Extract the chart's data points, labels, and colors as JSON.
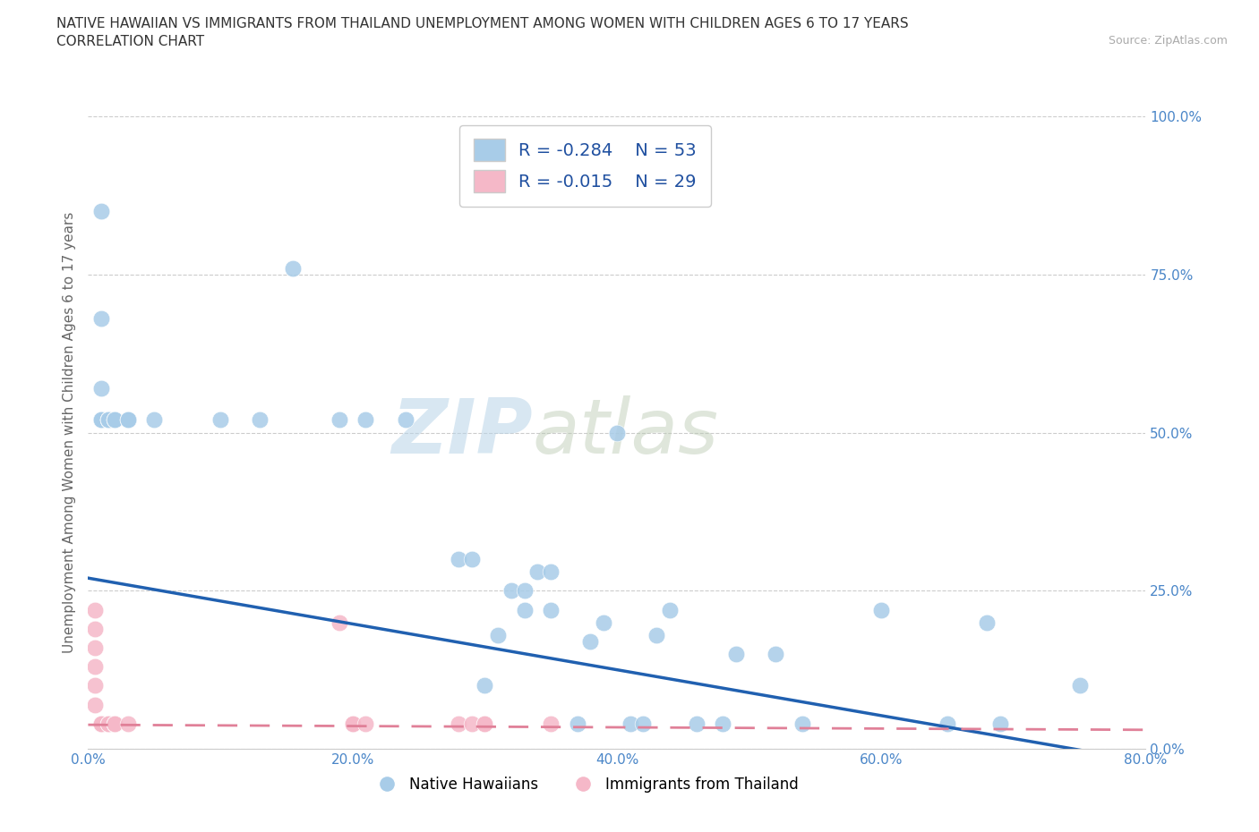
{
  "title_line1": "NATIVE HAWAIIAN VS IMMIGRANTS FROM THAILAND UNEMPLOYMENT AMONG WOMEN WITH CHILDREN AGES 6 TO 17 YEARS",
  "title_line2": "CORRELATION CHART",
  "source": "Source: ZipAtlas.com",
  "ylabel": "Unemployment Among Women with Children Ages 6 to 17 years",
  "xlim": [
    0.0,
    0.8
  ],
  "ylim": [
    0.0,
    1.0
  ],
  "xticks": [
    0.0,
    0.2,
    0.4,
    0.6,
    0.8
  ],
  "yticks": [
    0.0,
    0.25,
    0.5,
    0.75,
    1.0
  ],
  "xtick_labels": [
    "0.0%",
    "20.0%",
    "40.0%",
    "60.0%",
    "80.0%"
  ],
  "ytick_labels": [
    "0.0%",
    "25.0%",
    "50.0%",
    "75.0%",
    "100.0%"
  ],
  "blue_R": -0.284,
  "blue_N": 53,
  "pink_R": -0.015,
  "pink_N": 29,
  "blue_color": "#a8cce8",
  "pink_color": "#f5b8c8",
  "blue_line_color": "#2060b0",
  "pink_line_color": "#e08098",
  "watermark_zip": "ZIP",
  "watermark_atlas": "atlas",
  "legend_label_blue": "Native Hawaiians",
  "legend_label_pink": "Immigrants from Thailand",
  "blue_line_x0": 0.0,
  "blue_line_y0": 0.27,
  "blue_line_x1": 0.8,
  "blue_line_y1": -0.02,
  "pink_line_x0": 0.0,
  "pink_line_y0": 0.038,
  "pink_line_x1": 0.8,
  "pink_line_y1": 0.03,
  "blue_scatter_x": [
    0.01,
    0.01,
    0.01,
    0.01,
    0.01,
    0.01,
    0.015,
    0.015,
    0.015,
    0.015,
    0.015,
    0.02,
    0.02,
    0.02,
    0.02,
    0.03,
    0.03,
    0.03,
    0.05,
    0.1,
    0.13,
    0.155,
    0.19,
    0.21,
    0.24,
    0.28,
    0.29,
    0.3,
    0.31,
    0.32,
    0.33,
    0.33,
    0.34,
    0.35,
    0.35,
    0.37,
    0.38,
    0.39,
    0.4,
    0.41,
    0.42,
    0.43,
    0.44,
    0.46,
    0.48,
    0.49,
    0.52,
    0.54,
    0.6,
    0.65,
    0.68,
    0.69,
    0.75
  ],
  "blue_scatter_y": [
    0.85,
    0.68,
    0.57,
    0.52,
    0.52,
    0.52,
    0.52,
    0.52,
    0.52,
    0.52,
    0.52,
    0.52,
    0.52,
    0.52,
    0.52,
    0.52,
    0.52,
    0.52,
    0.52,
    0.52,
    0.52,
    0.76,
    0.52,
    0.52,
    0.52,
    0.3,
    0.3,
    0.1,
    0.18,
    0.25,
    0.25,
    0.22,
    0.28,
    0.28,
    0.22,
    0.04,
    0.17,
    0.2,
    0.5,
    0.04,
    0.04,
    0.18,
    0.22,
    0.04,
    0.04,
    0.15,
    0.15,
    0.04,
    0.22,
    0.04,
    0.2,
    0.04,
    0.1
  ],
  "pink_scatter_x": [
    0.005,
    0.005,
    0.005,
    0.005,
    0.005,
    0.005,
    0.01,
    0.01,
    0.01,
    0.01,
    0.01,
    0.015,
    0.015,
    0.015,
    0.02,
    0.02,
    0.02,
    0.02,
    0.02,
    0.03,
    0.19,
    0.2,
    0.2,
    0.21,
    0.28,
    0.29,
    0.3,
    0.3,
    0.35
  ],
  "pink_scatter_y": [
    0.22,
    0.19,
    0.16,
    0.13,
    0.1,
    0.07,
    0.04,
    0.04,
    0.04,
    0.04,
    0.04,
    0.04,
    0.04,
    0.04,
    0.04,
    0.04,
    0.04,
    0.04,
    0.04,
    0.04,
    0.2,
    0.04,
    0.04,
    0.04,
    0.04,
    0.04,
    0.04,
    0.04,
    0.04
  ]
}
